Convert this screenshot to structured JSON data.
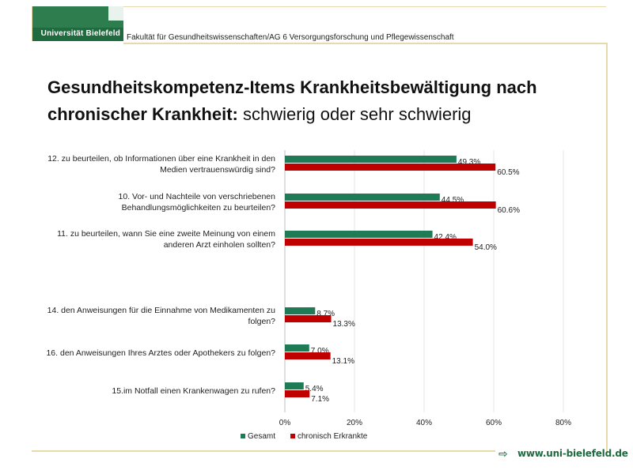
{
  "header": {
    "logo_text": "Universität Bielefeld",
    "faculty": "Fakultät für Gesundheitswissenschaften/AG 6 Versorgungsforschung und Pflegewissenschaft"
  },
  "title": {
    "line1": "Gesundheitskompetenz-Items Krankheitsbewältigung nach",
    "line2_bold": "chronischer Krankheit:",
    "line2_rest": " schwierig oder sehr schwierig"
  },
  "footer": {
    "url": "www.uni-bielefeld.de"
  },
  "chart_data": {
    "type": "bar",
    "orientation": "horizontal",
    "categories": [
      [
        "12. zu beurteilen, ob Informationen über eine Krankheit in den",
        "Medien vertrauenswürdig sind?"
      ],
      [
        "10. Vor- und Nachteile von verschriebenen",
        "Behandlungsmöglichkeiten zu beurteilen?"
      ],
      [
        "11. zu beurteilen, wann Sie eine zweite Meinung von einem",
        "anderen Arzt einholen sollten?"
      ],
      [
        "14. den Anweisungen für die Einnahme von Medikamenten zu",
        "folgen?"
      ],
      [
        "16. den Anweisungen Ihres Arztes oder Apothekers zu folgen?"
      ],
      [
        "15.im Notfall einen Krankenwagen zu rufen?"
      ]
    ],
    "series": [
      {
        "name": "Gesamt",
        "color": "#1e7b55",
        "values": [
          49.3,
          44.5,
          42.4,
          8.7,
          7.0,
          5.4
        ],
        "labels": [
          "49.3%",
          "44.5%",
          "42.4%",
          "8.7%",
          "7.0%",
          "5.4%"
        ]
      },
      {
        "name": "chronisch Erkrankte",
        "color": "#c00000",
        "values": [
          60.5,
          60.6,
          54.0,
          13.3,
          13.1,
          7.1
        ],
        "labels": [
          "60.5%",
          "60.6%",
          "54.0%",
          "13.3%",
          "13.1%",
          "7.1%"
        ]
      }
    ],
    "xlim": [
      0,
      80
    ],
    "xticks": [
      0,
      20,
      40,
      60,
      80
    ],
    "xtick_labels": [
      "0%",
      "20%",
      "40%",
      "60%",
      "80%"
    ],
    "gridlines": true,
    "legend_position": "bottom-left"
  }
}
